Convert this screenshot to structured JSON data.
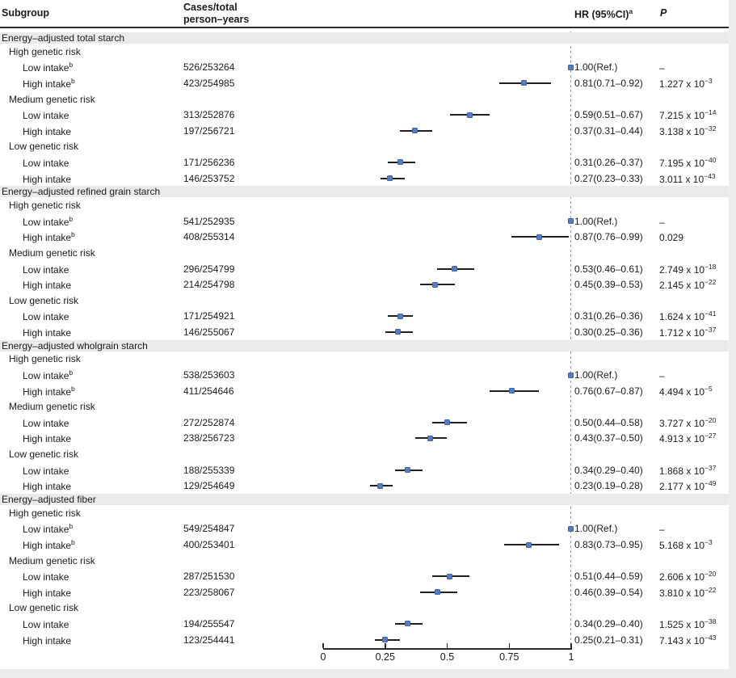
{
  "header": {
    "subgroup": "Subgroup",
    "cases_line1": "Cases/total",
    "cases_line2": "person–years",
    "hr": "HR (95%CI)",
    "hr_sup": "a",
    "p": "P"
  },
  "colors": {
    "marker_blue": "#567cc4",
    "band_gray": "#e8ebea",
    "ci_line": "#1f1f1f",
    "reference_line": "#9b9b9b"
  },
  "axis": {
    "min": 0,
    "max": 1,
    "ticks": [
      0,
      0.25,
      0.5,
      0.75,
      1
    ],
    "tick_labels": [
      "0",
      "0.25",
      "0.5",
      "0.75",
      "1"
    ]
  },
  "chart_data": {
    "type": "forest",
    "xlim": [
      0,
      1
    ],
    "reference_value": 1,
    "sections": [
      {
        "title": "Energy–adjusted total starch",
        "groups": [
          {
            "label": "High genetic risk",
            "rows": [
              {
                "label": "Low intake",
                "sup": "b",
                "cases": "526/253264",
                "hr": "1.00(Ref.)",
                "p_base": "–",
                "p_exp": "",
                "est": 1.0,
                "lo": null,
                "hi": null,
                "ref": true
              },
              {
                "label": "High intake",
                "sup": "b",
                "cases": "423/254985",
                "hr": "0.81(0.71–0.92)",
                "p_base": "1.227 x 10",
                "p_exp": "−3",
                "est": 0.81,
                "lo": 0.71,
                "hi": 0.92,
                "ref": false
              }
            ]
          },
          {
            "label": "Medium genetic risk",
            "rows": [
              {
                "label": "Low intake",
                "sup": "",
                "cases": "313/252876",
                "hr": "0.59(0.51–0.67)",
                "p_base": "7.215 x 10",
                "p_exp": "−14",
                "est": 0.59,
                "lo": 0.51,
                "hi": 0.67,
                "ref": false
              },
              {
                "label": "High intake",
                "sup": "",
                "cases": "197/256721",
                "hr": "0.37(0.31–0.44)",
                "p_base": "3.138 x 10",
                "p_exp": "−32",
                "est": 0.37,
                "lo": 0.31,
                "hi": 0.44,
                "ref": false
              }
            ]
          },
          {
            "label": "Low genetic risk",
            "rows": [
              {
                "label": "Low intake",
                "sup": "",
                "cases": "171/256236",
                "hr": "0.31(0.26–0.37)",
                "p_base": "7.195 x 10",
                "p_exp": "−40",
                "est": 0.31,
                "lo": 0.26,
                "hi": 0.37,
                "ref": false
              },
              {
                "label": "High intake",
                "sup": "",
                "cases": "146/253752",
                "hr": "0.27(0.23–0.33)",
                "p_base": "3.011 x 10",
                "p_exp": "−43",
                "est": 0.27,
                "lo": 0.23,
                "hi": 0.33,
                "ref": false
              }
            ]
          }
        ]
      },
      {
        "title": "Energy–adjusted refined grain starch",
        "groups": [
          {
            "label": "High genetic risk",
            "rows": [
              {
                "label": "Low intake",
                "sup": "b",
                "cases": "541/252935",
                "hr": "1.00(Ref.)",
                "p_base": "–",
                "p_exp": "",
                "est": 1.0,
                "lo": null,
                "hi": null,
                "ref": true
              },
              {
                "label": "High intake",
                "sup": "b",
                "cases": "408/255314",
                "hr": "0.87(0.76–0.99)",
                "p_base": "0.029",
                "p_exp": "",
                "est": 0.87,
                "lo": 0.76,
                "hi": 0.99,
                "ref": false
              }
            ]
          },
          {
            "label": "Medium genetic risk",
            "rows": [
              {
                "label": "Low intake",
                "sup": "",
                "cases": "296/254799",
                "hr": "0.53(0.46–0.61)",
                "p_base": "2.749 x 10",
                "p_exp": "−18",
                "est": 0.53,
                "lo": 0.46,
                "hi": 0.61,
                "ref": false
              },
              {
                "label": "High intake",
                "sup": "",
                "cases": "214/254798",
                "hr": "0.45(0.39–0.53)",
                "p_base": "2.145 x 10",
                "p_exp": "−22",
                "est": 0.45,
                "lo": 0.39,
                "hi": 0.53,
                "ref": false
              }
            ]
          },
          {
            "label": "Low genetic risk",
            "rows": [
              {
                "label": "Low intake",
                "sup": "",
                "cases": "171/254921",
                "hr": "0.31(0.26–0.36)",
                "p_base": "1.624 x 10",
                "p_exp": "−41",
                "est": 0.31,
                "lo": 0.26,
                "hi": 0.36,
                "ref": false
              },
              {
                "label": "High intake",
                "sup": "",
                "cases": "146/255067",
                "hr": "0.30(0.25–0.36)",
                "p_base": "1.712 x 10",
                "p_exp": "−37",
                "est": 0.3,
                "lo": 0.25,
                "hi": 0.36,
                "ref": false
              }
            ]
          }
        ]
      },
      {
        "title": "Energy–adjusted wholgrain starch",
        "groups": [
          {
            "label": "High genetic risk",
            "rows": [
              {
                "label": "Low intake",
                "sup": "b",
                "cases": "538/253603",
                "hr": "1.00(Ref.)",
                "p_base": "–",
                "p_exp": "",
                "est": 1.0,
                "lo": null,
                "hi": null,
                "ref": true
              },
              {
                "label": "High intake",
                "sup": "b",
                "cases": "411/254646",
                "hr": "0.76(0.67–0.87)",
                "p_base": "4.494 x 10",
                "p_exp": "−5",
                "est": 0.76,
                "lo": 0.67,
                "hi": 0.87,
                "ref": false
              }
            ]
          },
          {
            "label": "Medium genetic risk",
            "rows": [
              {
                "label": "Low intake",
                "sup": "",
                "cases": "272/252874",
                "hr": "0.50(0.44–0.58)",
                "p_base": "3.727 x 10",
                "p_exp": "−20",
                "est": 0.5,
                "lo": 0.44,
                "hi": 0.58,
                "ref": false
              },
              {
                "label": "High intake",
                "sup": "",
                "cases": "238/256723",
                "hr": "0.43(0.37–0.50)",
                "p_base": "4.913 x 10",
                "p_exp": "−27",
                "est": 0.43,
                "lo": 0.37,
                "hi": 0.5,
                "ref": false
              }
            ]
          },
          {
            "label": "Low genetic risk",
            "rows": [
              {
                "label": "Low intake",
                "sup": "",
                "cases": "188/255339",
                "hr": "0.34(0.29–0.40)",
                "p_base": "1.868 x 10",
                "p_exp": "−37",
                "est": 0.34,
                "lo": 0.29,
                "hi": 0.4,
                "ref": false
              },
              {
                "label": "High intake",
                "sup": "",
                "cases": "129/254649",
                "hr": "0.23(0.19–0.28)",
                "p_base": "2.177 x 10",
                "p_exp": "−49",
                "est": 0.23,
                "lo": 0.19,
                "hi": 0.28,
                "ref": false
              }
            ]
          }
        ]
      },
      {
        "title": "Energy–adjusted fiber",
        "groups": [
          {
            "label": "High genetic risk",
            "rows": [
              {
                "label": "Low intake",
                "sup": "b",
                "cases": "549/254847",
                "hr": "1.00(Ref.)",
                "p_base": "–",
                "p_exp": "",
                "est": 1.0,
                "lo": null,
                "hi": null,
                "ref": true
              },
              {
                "label": "High intake",
                "sup": "b",
                "cases": "400/253401",
                "hr": "0.83(0.73–0.95)",
                "p_base": "5.168 x 10",
                "p_exp": "−3",
                "est": 0.83,
                "lo": 0.73,
                "hi": 0.95,
                "ref": false
              }
            ]
          },
          {
            "label": "Medium genetic risk",
            "rows": [
              {
                "label": "Low intake",
                "sup": "",
                "cases": "287/251530",
                "hr": "0.51(0.44–0.59)",
                "p_base": "2.606 x 10",
                "p_exp": "−20",
                "est": 0.51,
                "lo": 0.44,
                "hi": 0.59,
                "ref": false
              },
              {
                "label": "High intake",
                "sup": "",
                "cases": "223/258067",
                "hr": "0.46(0.39–0.54)",
                "p_base": "3.810 x 10",
                "p_exp": "−22",
                "est": 0.46,
                "lo": 0.39,
                "hi": 0.54,
                "ref": false
              }
            ]
          },
          {
            "label": "Low genetic risk",
            "rows": [
              {
                "label": "Low intake",
                "sup": "",
                "cases": "194/255547",
                "hr": "0.34(0.29–0.40)",
                "p_base": "1.525 x 10",
                "p_exp": "−38",
                "est": 0.34,
                "lo": 0.29,
                "hi": 0.4,
                "ref": false
              },
              {
                "label": "High intake",
                "sup": "",
                "cases": "123/254441",
                "hr": "0.25(0.21–0.31)",
                "p_base": "7.143 x 10",
                "p_exp": "−43",
                "est": 0.25,
                "lo": 0.21,
                "hi": 0.31,
                "ref": false
              }
            ]
          }
        ]
      }
    ]
  }
}
